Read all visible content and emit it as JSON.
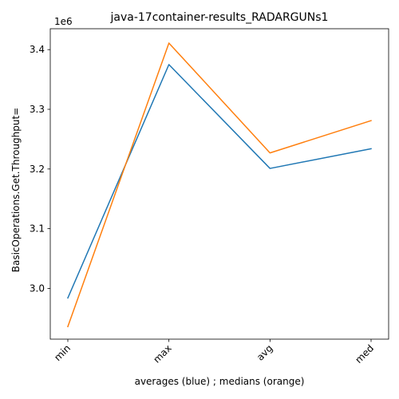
{
  "chart_data": {
    "type": "line",
    "title": "java-17container-results_RADARGUNs1",
    "xlabel": "averages (blue) ; medians (orange)",
    "ylabel": "BasicOperations.Get.Throughput=",
    "y_offset_text": "1e6",
    "categories": [
      "min",
      "max",
      "avg",
      "med"
    ],
    "x_tick_rotation_deg": 45,
    "ylim": [
      2.915,
      3.435
    ],
    "y_ticks": [
      3.0,
      3.1,
      3.2,
      3.3,
      3.4
    ],
    "y_tick_labels": [
      "3.0",
      "3.1",
      "3.2",
      "3.3",
      "3.4"
    ],
    "y_scale": 1000000,
    "grid": false,
    "legend": "none",
    "series": [
      {
        "color": "#1f77b4",
        "values": [
          2984000,
          3375000,
          3201000,
          3234000
        ]
      },
      {
        "color": "#ff7f0e",
        "values": [
          2936000,
          3411000,
          3227000,
          3281000
        ]
      }
    ]
  }
}
